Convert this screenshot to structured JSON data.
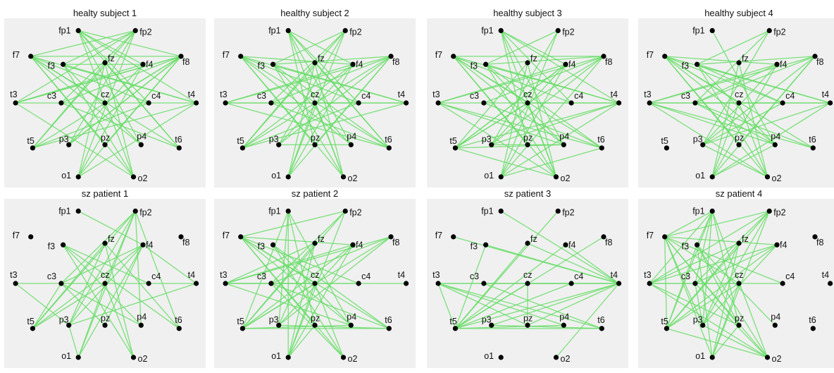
{
  "electrode_labels": [
    "fp1",
    "fp2",
    "f7",
    "f3",
    "fz",
    "f4",
    "f8",
    "t3",
    "c3",
    "cz",
    "c4",
    "t4",
    "t5",
    "p3",
    "pz",
    "p4",
    "t6",
    "o1",
    "o2"
  ],
  "colors": {
    "edge": "#66dd66",
    "node": "#000000",
    "panel_background": "#f0f0f0"
  },
  "panels": [
    {
      "title": "healty subject 1",
      "edges": [
        [
          "fp1",
          "f4"
        ],
        [
          "fp1",
          "c4"
        ],
        [
          "fp1",
          "t4"
        ],
        [
          "fp1",
          "p4"
        ],
        [
          "fp1",
          "t6"
        ],
        [
          "fp1",
          "f8"
        ],
        [
          "fp1",
          "o2"
        ],
        [
          "fp2",
          "f7"
        ],
        [
          "fp2",
          "f3"
        ],
        [
          "fp2",
          "c3"
        ],
        [
          "fp2",
          "t3"
        ],
        [
          "fp2",
          "p3"
        ],
        [
          "fp2",
          "t5"
        ],
        [
          "fp2",
          "o1"
        ],
        [
          "f7",
          "f8"
        ],
        [
          "f7",
          "c4"
        ],
        [
          "f7",
          "t4"
        ],
        [
          "f7",
          "p4"
        ],
        [
          "f7",
          "o2"
        ],
        [
          "f7",
          "t6"
        ],
        [
          "f8",
          "c3"
        ],
        [
          "f8",
          "t3"
        ],
        [
          "f8",
          "p3"
        ],
        [
          "f8",
          "o1"
        ],
        [
          "f8",
          "t5"
        ],
        [
          "f3",
          "f4"
        ],
        [
          "f3",
          "t4"
        ],
        [
          "f3",
          "p4"
        ],
        [
          "f3",
          "o2"
        ],
        [
          "f4",
          "t3"
        ],
        [
          "f4",
          "p3"
        ],
        [
          "f4",
          "o1"
        ],
        [
          "t3",
          "t4"
        ],
        [
          "t3",
          "f8"
        ],
        [
          "t4",
          "t5"
        ],
        [
          "t5",
          "fz"
        ],
        [
          "t6",
          "fz"
        ],
        [
          "o1",
          "fz"
        ],
        [
          "o2",
          "fz"
        ],
        [
          "o1",
          "t4"
        ],
        [
          "o2",
          "t3"
        ],
        [
          "c3",
          "t6"
        ],
        [
          "c4",
          "t5"
        ],
        [
          "p3",
          "f8"
        ],
        [
          "pz",
          "f7"
        ],
        [
          "pz",
          "f8"
        ],
        [
          "cz",
          "f7"
        ],
        [
          "cz",
          "f8"
        ]
      ]
    },
    {
      "title": "healthy subject 2",
      "edges": [
        [
          "fp1",
          "f4"
        ],
        [
          "fp1",
          "c4"
        ],
        [
          "fp1",
          "p4"
        ],
        [
          "fp1",
          "t6"
        ],
        [
          "fp1",
          "o2"
        ],
        [
          "fp1",
          "pz"
        ],
        [
          "fp2",
          "f3"
        ],
        [
          "fp2",
          "c3"
        ],
        [
          "fp2",
          "p3"
        ],
        [
          "fp2",
          "t5"
        ],
        [
          "fp2",
          "o1"
        ],
        [
          "f7",
          "f4"
        ],
        [
          "f7",
          "c4"
        ],
        [
          "f7",
          "t4"
        ],
        [
          "f7",
          "p4"
        ],
        [
          "f7",
          "o2"
        ],
        [
          "f7",
          "t6"
        ],
        [
          "f8",
          "f3"
        ],
        [
          "f8",
          "c3"
        ],
        [
          "f8",
          "t3"
        ],
        [
          "f8",
          "p3"
        ],
        [
          "f8",
          "o1"
        ],
        [
          "f8",
          "t5"
        ],
        [
          "f3",
          "t4"
        ],
        [
          "f3",
          "p4"
        ],
        [
          "f3",
          "o2"
        ],
        [
          "f3",
          "t6"
        ],
        [
          "f4",
          "t3"
        ],
        [
          "f4",
          "p3"
        ],
        [
          "f4",
          "o1"
        ],
        [
          "f4",
          "t5"
        ],
        [
          "t3",
          "t4"
        ],
        [
          "t3",
          "c4"
        ],
        [
          "t4",
          "c3"
        ],
        [
          "t4",
          "t5"
        ],
        [
          "t3",
          "t6"
        ],
        [
          "p3",
          "p4"
        ],
        [
          "t5",
          "fz"
        ],
        [
          "t6",
          "fz"
        ],
        [
          "o1",
          "fz"
        ],
        [
          "o2",
          "fz"
        ],
        [
          "pz",
          "f7"
        ],
        [
          "pz",
          "f8"
        ],
        [
          "cz",
          "o1"
        ],
        [
          "cz",
          "o2"
        ],
        [
          "c3",
          "t6"
        ],
        [
          "c4",
          "t5"
        ]
      ]
    },
    {
      "title": "healthy subject 3",
      "edges": [
        [
          "fp1",
          "f4"
        ],
        [
          "fp1",
          "c4"
        ],
        [
          "fp1",
          "t4"
        ],
        [
          "fp1",
          "p4"
        ],
        [
          "fp1",
          "pz"
        ],
        [
          "fp1",
          "o2"
        ],
        [
          "fp2",
          "f3"
        ],
        [
          "fp2",
          "p3"
        ],
        [
          "fp2",
          "o1"
        ],
        [
          "f7",
          "f8"
        ],
        [
          "f7",
          "c4"
        ],
        [
          "f7",
          "t4"
        ],
        [
          "f7",
          "p4"
        ],
        [
          "f7",
          "o2"
        ],
        [
          "f7",
          "t6"
        ],
        [
          "f7",
          "pz"
        ],
        [
          "f8",
          "f3"
        ],
        [
          "f8",
          "c3"
        ],
        [
          "f8",
          "t3"
        ],
        [
          "f8",
          "p3"
        ],
        [
          "f8",
          "o1"
        ],
        [
          "f8",
          "t5"
        ],
        [
          "f3",
          "t4"
        ],
        [
          "f3",
          "p4"
        ],
        [
          "f3",
          "o2"
        ],
        [
          "f3",
          "t6"
        ],
        [
          "f4",
          "t3"
        ],
        [
          "f4",
          "p3"
        ],
        [
          "f4",
          "o1"
        ],
        [
          "f4",
          "t5"
        ],
        [
          "t3",
          "t4"
        ],
        [
          "t3",
          "p4"
        ],
        [
          "t3",
          "o2"
        ],
        [
          "t3",
          "t6"
        ],
        [
          "t4",
          "t5"
        ],
        [
          "t4",
          "p3"
        ],
        [
          "t4",
          "o1"
        ],
        [
          "t5",
          "p4"
        ],
        [
          "t5",
          "o2"
        ],
        [
          "t5",
          "cz"
        ],
        [
          "t6",
          "c3"
        ],
        [
          "t6",
          "o1"
        ],
        [
          "t5",
          "f4"
        ],
        [
          "p3",
          "p4"
        ],
        [
          "fz",
          "o1"
        ],
        [
          "fz",
          "o2"
        ],
        [
          "fz",
          "t5"
        ],
        [
          "cz",
          "o2"
        ],
        [
          "cz",
          "f7"
        ],
        [
          "cz",
          "t4"
        ]
      ]
    },
    {
      "title": "healthy subject 4",
      "edges": [
        [
          "fp1",
          "p4"
        ],
        [
          "f7",
          "f4"
        ],
        [
          "f7",
          "c4"
        ],
        [
          "f7",
          "t4"
        ],
        [
          "f7",
          "p4"
        ],
        [
          "f7",
          "o2"
        ],
        [
          "f7",
          "pz"
        ],
        [
          "f7",
          "t6"
        ],
        [
          "f8",
          "f3"
        ],
        [
          "f8",
          "c3"
        ],
        [
          "f8",
          "t3"
        ],
        [
          "f8",
          "p3"
        ],
        [
          "f8",
          "o1"
        ],
        [
          "fp2",
          "f3"
        ],
        [
          "fp2",
          "c3"
        ],
        [
          "fp2",
          "p3"
        ],
        [
          "f3",
          "c4"
        ],
        [
          "f3",
          "p4"
        ],
        [
          "f3",
          "o2"
        ],
        [
          "f3",
          "t4"
        ],
        [
          "f4",
          "t3"
        ],
        [
          "f4",
          "p3"
        ],
        [
          "f4",
          "o1"
        ],
        [
          "f4",
          "c3"
        ],
        [
          "t3",
          "t4"
        ],
        [
          "t3",
          "c4"
        ],
        [
          "t3",
          "p4"
        ],
        [
          "t3",
          "o2"
        ],
        [
          "t3",
          "t6"
        ],
        [
          "t4",
          "c3"
        ],
        [
          "t4",
          "p3"
        ],
        [
          "t4",
          "o1"
        ],
        [
          "c3",
          "p4"
        ],
        [
          "c4",
          "p3"
        ],
        [
          "p3",
          "o2"
        ],
        [
          "p4",
          "o1"
        ],
        [
          "fz",
          "o1"
        ],
        [
          "fz",
          "o2"
        ],
        [
          "cz",
          "f7"
        ],
        [
          "cz",
          "o1"
        ],
        [
          "cz",
          "o2"
        ],
        [
          "pz",
          "f8"
        ],
        [
          "c3",
          "t6"
        ]
      ]
    },
    {
      "title": "sz patient 1",
      "edges": [
        [
          "fp1",
          "f4"
        ],
        [
          "fp2",
          "c3"
        ],
        [
          "fp2",
          "p3"
        ],
        [
          "fp2",
          "t5"
        ],
        [
          "fp2",
          "o1"
        ],
        [
          "fp2",
          "t6"
        ],
        [
          "fp2",
          "p4"
        ],
        [
          "fp2",
          "cz"
        ],
        [
          "f3",
          "c4"
        ],
        [
          "f3",
          "p4"
        ],
        [
          "f3",
          "t6"
        ],
        [
          "f3",
          "o2"
        ],
        [
          "f4",
          "c3"
        ],
        [
          "f4",
          "p3"
        ],
        [
          "f4",
          "t5"
        ],
        [
          "f4",
          "o1"
        ],
        [
          "f4",
          "pz"
        ],
        [
          "f4",
          "t4"
        ],
        [
          "fz",
          "o2"
        ],
        [
          "fz",
          "t6"
        ],
        [
          "fz",
          "p3"
        ],
        [
          "c3",
          "t4"
        ],
        [
          "c3",
          "p4"
        ],
        [
          "t3",
          "c3"
        ],
        [
          "t3",
          "p3"
        ],
        [
          "t5",
          "cz"
        ],
        [
          "t5",
          "c3"
        ],
        [
          "pz",
          "c3"
        ],
        [
          "p3",
          "o1"
        ],
        [
          "o1",
          "cz"
        ],
        [
          "o2",
          "cz"
        ],
        [
          "t5",
          "fz"
        ],
        [
          "p3",
          "t4"
        ]
      ]
    },
    {
      "title": "sz patient 2",
      "edges": [
        [
          "f7",
          "f4"
        ],
        [
          "f7",
          "c4"
        ],
        [
          "f7",
          "cz"
        ],
        [
          "f7",
          "p4"
        ],
        [
          "f7",
          "o2"
        ],
        [
          "f7",
          "t6"
        ],
        [
          "f7",
          "pz"
        ],
        [
          "f7",
          "fp2"
        ],
        [
          "fp1",
          "p3"
        ],
        [
          "fp1",
          "pz"
        ],
        [
          "fp1",
          "o1"
        ],
        [
          "fp1",
          "t5"
        ],
        [
          "fp1",
          "p4"
        ],
        [
          "fp2",
          "c3"
        ],
        [
          "fp2",
          "t5"
        ],
        [
          "fp2",
          "o1"
        ],
        [
          "f8",
          "t3"
        ],
        [
          "f8",
          "c3"
        ],
        [
          "f8",
          "p3"
        ],
        [
          "f8",
          "t5"
        ],
        [
          "f3",
          "t6"
        ],
        [
          "f3",
          "p4"
        ],
        [
          "f3",
          "o2"
        ],
        [
          "fz",
          "t3"
        ],
        [
          "fz",
          "p3"
        ],
        [
          "fz",
          "o1"
        ],
        [
          "fz",
          "t5"
        ],
        [
          "f4",
          "t3"
        ],
        [
          "f4",
          "p3"
        ],
        [
          "f4",
          "t5"
        ],
        [
          "f4",
          "o1"
        ],
        [
          "t3",
          "c4"
        ],
        [
          "t3",
          "t4"
        ],
        [
          "t3",
          "cz"
        ],
        [
          "t3",
          "p4"
        ],
        [
          "t5",
          "cz"
        ],
        [
          "t5",
          "p4"
        ],
        [
          "t5",
          "t6"
        ],
        [
          "c3",
          "t6"
        ],
        [
          "c3",
          "o2"
        ],
        [
          "cz",
          "o1"
        ],
        [
          "cz",
          "o2"
        ],
        [
          "p3",
          "t6"
        ],
        [
          "pz",
          "o1"
        ]
      ]
    },
    {
      "title": "sz patient 3",
      "edges": [
        [
          "fp1",
          "t4"
        ],
        [
          "fp2",
          "t5"
        ],
        [
          "f7",
          "t4"
        ],
        [
          "f3",
          "t4"
        ],
        [
          "f3",
          "t5"
        ],
        [
          "fz",
          "t5"
        ],
        [
          "f4",
          "t5"
        ],
        [
          "f8",
          "t5"
        ],
        [
          "t3",
          "t4"
        ],
        [
          "t3",
          "c4"
        ],
        [
          "t3",
          "p4"
        ],
        [
          "t3",
          "t6"
        ],
        [
          "t3",
          "pz"
        ],
        [
          "t5",
          "t4"
        ],
        [
          "t5",
          "c4"
        ],
        [
          "t5",
          "cz"
        ],
        [
          "t5",
          "p4"
        ],
        [
          "t5",
          "t6"
        ],
        [
          "t4",
          "c3"
        ],
        [
          "t4",
          "p3"
        ],
        [
          "t4",
          "cz"
        ],
        [
          "t4",
          "pz"
        ],
        [
          "t4",
          "o2"
        ],
        [
          "t4",
          "f4"
        ],
        [
          "t3",
          "t5"
        ],
        [
          "cz",
          "pz"
        ],
        [
          "c3",
          "t6"
        ],
        [
          "p3",
          "t6"
        ],
        [
          "fz",
          "t4"
        ]
      ]
    },
    {
      "title": "sz patient 4",
      "edges": [
        [
          "fp1",
          "f7"
        ],
        [
          "fp1",
          "t3"
        ],
        [
          "fp1",
          "t5"
        ],
        [
          "fp1",
          "p3"
        ],
        [
          "fp1",
          "pz"
        ],
        [
          "fp1",
          "o2"
        ],
        [
          "fp1",
          "c3"
        ],
        [
          "fp1",
          "f3"
        ],
        [
          "fp2",
          "t5"
        ],
        [
          "fp2",
          "t3"
        ],
        [
          "fp2",
          "p3"
        ],
        [
          "fp2",
          "c3"
        ],
        [
          "fp2",
          "o1"
        ],
        [
          "fp2",
          "f7"
        ],
        [
          "f7",
          "f4"
        ],
        [
          "f7",
          "c4"
        ],
        [
          "f7",
          "cz"
        ],
        [
          "f7",
          "p3"
        ],
        [
          "f7",
          "o2"
        ],
        [
          "f7",
          "pz"
        ],
        [
          "f7",
          "o1"
        ],
        [
          "f7",
          "t5"
        ],
        [
          "f3",
          "o2"
        ],
        [
          "f3",
          "pz"
        ],
        [
          "f3",
          "t5"
        ],
        [
          "f3",
          "p4"
        ],
        [
          "fz",
          "t5"
        ],
        [
          "fz",
          "o1"
        ],
        [
          "fz",
          "p3"
        ],
        [
          "fz",
          "t3"
        ],
        [
          "f4",
          "t3"
        ],
        [
          "f4",
          "c3"
        ],
        [
          "f4",
          "p3"
        ],
        [
          "f4",
          "t5"
        ],
        [
          "t3",
          "c4"
        ],
        [
          "t3",
          "pz"
        ],
        [
          "t3",
          "o2"
        ],
        [
          "t3",
          "cz"
        ],
        [
          "c3",
          "o2"
        ],
        [
          "c3",
          "p3"
        ],
        [
          "cz",
          "o1"
        ],
        [
          "cz",
          "t5"
        ],
        [
          "p3",
          "o2"
        ],
        [
          "pz",
          "o1"
        ],
        [
          "t5",
          "o2"
        ],
        [
          "f3",
          "o1"
        ]
      ]
    }
  ]
}
